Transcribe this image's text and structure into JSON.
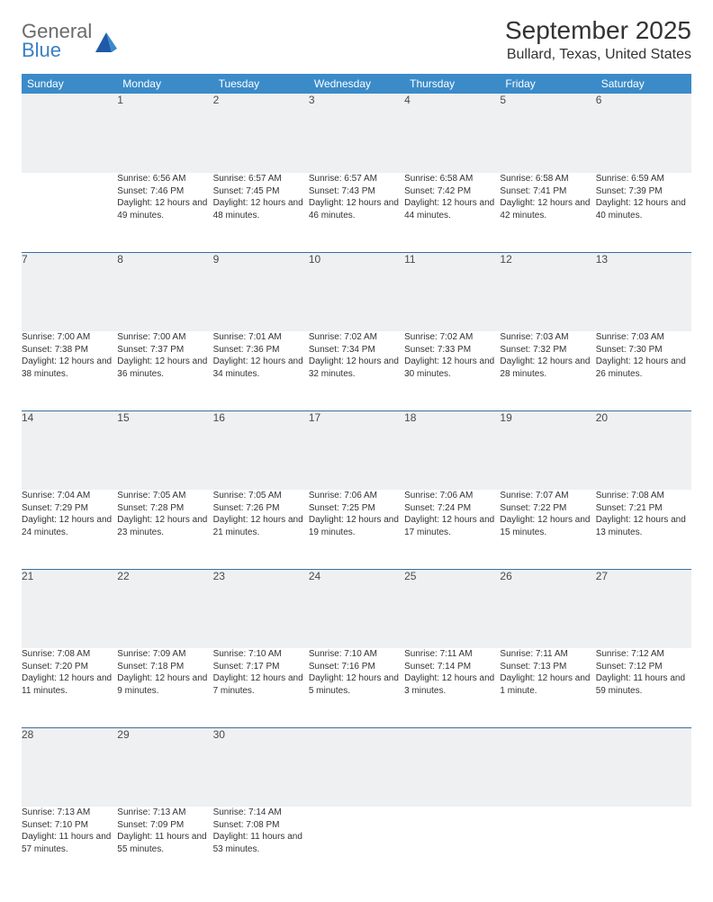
{
  "brand": {
    "general": "General",
    "blue": "Blue"
  },
  "title": "September 2025",
  "location": "Bullard, Texas, United States",
  "colors": {
    "header_bg": "#3b8bc9",
    "header_text": "#ffffff",
    "daynum_bg": "#eef0f1",
    "row_divider": "#3b6fa0",
    "body_text": "#333333",
    "logo_gray": "#6b6b6b",
    "logo_blue": "#3b7fc4"
  },
  "dayHeaders": [
    "Sunday",
    "Monday",
    "Tuesday",
    "Wednesday",
    "Thursday",
    "Friday",
    "Saturday"
  ],
  "weeks": [
    [
      null,
      {
        "n": "1",
        "sr": "Sunrise: 6:56 AM",
        "ss": "Sunset: 7:46 PM",
        "dl": "Daylight: 12 hours and 49 minutes."
      },
      {
        "n": "2",
        "sr": "Sunrise: 6:57 AM",
        "ss": "Sunset: 7:45 PM",
        "dl": "Daylight: 12 hours and 48 minutes."
      },
      {
        "n": "3",
        "sr": "Sunrise: 6:57 AM",
        "ss": "Sunset: 7:43 PM",
        "dl": "Daylight: 12 hours and 46 minutes."
      },
      {
        "n": "4",
        "sr": "Sunrise: 6:58 AM",
        "ss": "Sunset: 7:42 PM",
        "dl": "Daylight: 12 hours and 44 minutes."
      },
      {
        "n": "5",
        "sr": "Sunrise: 6:58 AM",
        "ss": "Sunset: 7:41 PM",
        "dl": "Daylight: 12 hours and 42 minutes."
      },
      {
        "n": "6",
        "sr": "Sunrise: 6:59 AM",
        "ss": "Sunset: 7:39 PM",
        "dl": "Daylight: 12 hours and 40 minutes."
      }
    ],
    [
      {
        "n": "7",
        "sr": "Sunrise: 7:00 AM",
        "ss": "Sunset: 7:38 PM",
        "dl": "Daylight: 12 hours and 38 minutes."
      },
      {
        "n": "8",
        "sr": "Sunrise: 7:00 AM",
        "ss": "Sunset: 7:37 PM",
        "dl": "Daylight: 12 hours and 36 minutes."
      },
      {
        "n": "9",
        "sr": "Sunrise: 7:01 AM",
        "ss": "Sunset: 7:36 PM",
        "dl": "Daylight: 12 hours and 34 minutes."
      },
      {
        "n": "10",
        "sr": "Sunrise: 7:02 AM",
        "ss": "Sunset: 7:34 PM",
        "dl": "Daylight: 12 hours and 32 minutes."
      },
      {
        "n": "11",
        "sr": "Sunrise: 7:02 AM",
        "ss": "Sunset: 7:33 PM",
        "dl": "Daylight: 12 hours and 30 minutes."
      },
      {
        "n": "12",
        "sr": "Sunrise: 7:03 AM",
        "ss": "Sunset: 7:32 PM",
        "dl": "Daylight: 12 hours and 28 minutes."
      },
      {
        "n": "13",
        "sr": "Sunrise: 7:03 AM",
        "ss": "Sunset: 7:30 PM",
        "dl": "Daylight: 12 hours and 26 minutes."
      }
    ],
    [
      {
        "n": "14",
        "sr": "Sunrise: 7:04 AM",
        "ss": "Sunset: 7:29 PM",
        "dl": "Daylight: 12 hours and 24 minutes."
      },
      {
        "n": "15",
        "sr": "Sunrise: 7:05 AM",
        "ss": "Sunset: 7:28 PM",
        "dl": "Daylight: 12 hours and 23 minutes."
      },
      {
        "n": "16",
        "sr": "Sunrise: 7:05 AM",
        "ss": "Sunset: 7:26 PM",
        "dl": "Daylight: 12 hours and 21 minutes."
      },
      {
        "n": "17",
        "sr": "Sunrise: 7:06 AM",
        "ss": "Sunset: 7:25 PM",
        "dl": "Daylight: 12 hours and 19 minutes."
      },
      {
        "n": "18",
        "sr": "Sunrise: 7:06 AM",
        "ss": "Sunset: 7:24 PM",
        "dl": "Daylight: 12 hours and 17 minutes."
      },
      {
        "n": "19",
        "sr": "Sunrise: 7:07 AM",
        "ss": "Sunset: 7:22 PM",
        "dl": "Daylight: 12 hours and 15 minutes."
      },
      {
        "n": "20",
        "sr": "Sunrise: 7:08 AM",
        "ss": "Sunset: 7:21 PM",
        "dl": "Daylight: 12 hours and 13 minutes."
      }
    ],
    [
      {
        "n": "21",
        "sr": "Sunrise: 7:08 AM",
        "ss": "Sunset: 7:20 PM",
        "dl": "Daylight: 12 hours and 11 minutes."
      },
      {
        "n": "22",
        "sr": "Sunrise: 7:09 AM",
        "ss": "Sunset: 7:18 PM",
        "dl": "Daylight: 12 hours and 9 minutes."
      },
      {
        "n": "23",
        "sr": "Sunrise: 7:10 AM",
        "ss": "Sunset: 7:17 PM",
        "dl": "Daylight: 12 hours and 7 minutes."
      },
      {
        "n": "24",
        "sr": "Sunrise: 7:10 AM",
        "ss": "Sunset: 7:16 PM",
        "dl": "Daylight: 12 hours and 5 minutes."
      },
      {
        "n": "25",
        "sr": "Sunrise: 7:11 AM",
        "ss": "Sunset: 7:14 PM",
        "dl": "Daylight: 12 hours and 3 minutes."
      },
      {
        "n": "26",
        "sr": "Sunrise: 7:11 AM",
        "ss": "Sunset: 7:13 PM",
        "dl": "Daylight: 12 hours and 1 minute."
      },
      {
        "n": "27",
        "sr": "Sunrise: 7:12 AM",
        "ss": "Sunset: 7:12 PM",
        "dl": "Daylight: 11 hours and 59 minutes."
      }
    ],
    [
      {
        "n": "28",
        "sr": "Sunrise: 7:13 AM",
        "ss": "Sunset: 7:10 PM",
        "dl": "Daylight: 11 hours and 57 minutes."
      },
      {
        "n": "29",
        "sr": "Sunrise: 7:13 AM",
        "ss": "Sunset: 7:09 PM",
        "dl": "Daylight: 11 hours and 55 minutes."
      },
      {
        "n": "30",
        "sr": "Sunrise: 7:14 AM",
        "ss": "Sunset: 7:08 PM",
        "dl": "Daylight: 11 hours and 53 minutes."
      },
      null,
      null,
      null,
      null
    ]
  ]
}
